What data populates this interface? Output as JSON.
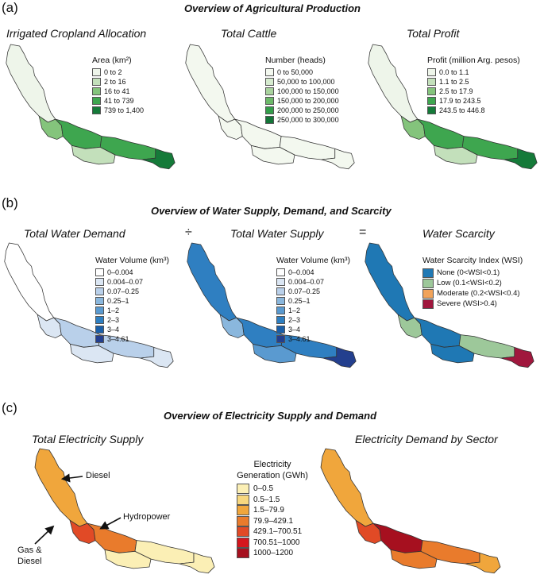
{
  "panels": {
    "a": {
      "label": "(a)",
      "title": "Overview of Agricultural Production",
      "maps": [
        {
          "title": "Irrigated Cropland Allocation",
          "legend_title": "Area (km²)",
          "classes": [
            {
              "label": "0 to 2",
              "color": "#eef5ea"
            },
            {
              "label": "2 to 16",
              "color": "#c3e0bb"
            },
            {
              "label": "16 to 41",
              "color": "#84c47c"
            },
            {
              "label": "41 to 739",
              "color": "#3ea64f"
            },
            {
              "label": "739 to 1,400",
              "color": "#157a39"
            }
          ]
        },
        {
          "title": "Total Cattle",
          "legend_title": "Number (heads)",
          "classes": [
            {
              "label": "0 to 50,000",
              "color": "#f3f8ef"
            },
            {
              "label": "50,000 to 100,000",
              "color": "#d6ebcf"
            },
            {
              "label": "100,000 to 150,000",
              "color": "#a9d39e"
            },
            {
              "label": "150,000 to 200,000",
              "color": "#6db96a"
            },
            {
              "label": "200,000 to 250,000",
              "color": "#339d4a"
            },
            {
              "label": "250,000 to 300,000",
              "color": "#147538"
            }
          ]
        },
        {
          "title": "Total Profit",
          "legend_title": "Profit (million Arg. pesos)",
          "classes": [
            {
              "label": "0.0 to 1.1",
              "color": "#eef5ea"
            },
            {
              "label": "1.1 to 2.5",
              "color": "#c3e0bb"
            },
            {
              "label": "2.5 to 17.9",
              "color": "#84c47c"
            },
            {
              "label": "17.9 to 243.5",
              "color": "#3ea64f"
            },
            {
              "label": "243.5 to 446.8",
              "color": "#157a39"
            }
          ]
        }
      ]
    },
    "b": {
      "label": "(b)",
      "title": "Overview of Water Supply, Demand, and Scarcity",
      "op_divide": "÷",
      "op_equals": "=",
      "maps": [
        {
          "title": "Total Water Demand",
          "legend_title": "Water Volume (km³)",
          "classes": [
            {
              "label": "0–0.004",
              "color": "#ffffff"
            },
            {
              "label": "0.004–0.07",
              "color": "#dbe6f3"
            },
            {
              "label": "0.07–0.25",
              "color": "#b9d0ea"
            },
            {
              "label": "0.25–1",
              "color": "#8ab7dd"
            },
            {
              "label": "1–2",
              "color": "#5a9ad0"
            },
            {
              "label": "2–3",
              "color": "#2f7fc1"
            },
            {
              "label": "3–4",
              "color": "#1b5fa8"
            },
            {
              "label": "3–4.61",
              "color": "#233f8e"
            }
          ]
        },
        {
          "title": "Total Water Supply",
          "legend_title": "Water Volume (km³)",
          "classes": [
            {
              "label": "0–0.004",
              "color": "#ffffff"
            },
            {
              "label": "0.004–0.07",
              "color": "#dbe6f3"
            },
            {
              "label": "0.07–0.25",
              "color": "#b9d0ea"
            },
            {
              "label": "0.25–1",
              "color": "#8ab7dd"
            },
            {
              "label": "1–2",
              "color": "#5a9ad0"
            },
            {
              "label": "2–3",
              "color": "#2f7fc1"
            },
            {
              "label": "3–4",
              "color": "#1b5fa8"
            },
            {
              "label": "3–4.61",
              "color": "#233f8e"
            }
          ]
        },
        {
          "title": "Water Scarcity",
          "legend_title": "Water Scarcity Index (WSI)",
          "classes": [
            {
              "label": "None (0<WSI<0.1)",
              "color": "#1f78b4"
            },
            {
              "label": "Low (0.1<WSI<0.2)",
              "color": "#9dc89a"
            },
            {
              "label": "Moderate (0.2<WSI<0.4)",
              "color": "#f1a35a"
            },
            {
              "label": "Severe (WSI>0.4)",
              "color": "#a0173d"
            }
          ]
        }
      ]
    },
    "c": {
      "label": "(c)",
      "title": "Overview of Electricity Supply and Demand",
      "maps": [
        {
          "title": "Total Electricity Supply"
        },
        {
          "title": "Electricity Demand by Sector"
        }
      ],
      "legend_title": "Electricity Generation (GWh)",
      "classes": [
        {
          "label": "0–0.5",
          "color": "#fbefb5"
        },
        {
          "label": "0.5–1.5",
          "color": "#f7d77e"
        },
        {
          "label": "1.5–79.9",
          "color": "#f0a63c"
        },
        {
          "label": "79.9–429.1",
          "color": "#e97b2c"
        },
        {
          "label": "429.1–700.51",
          "color": "#e14a26"
        },
        {
          "label": "700.51–1000",
          "color": "#d4161e"
        },
        {
          "label": "1000–1200",
          "color": "#a6101f"
        }
      ],
      "annotations": {
        "diesel": "Diesel",
        "hydropower": "Hydropower",
        "gas_line1": "Gas &",
        "gas_line2": "Diesel"
      }
    }
  }
}
